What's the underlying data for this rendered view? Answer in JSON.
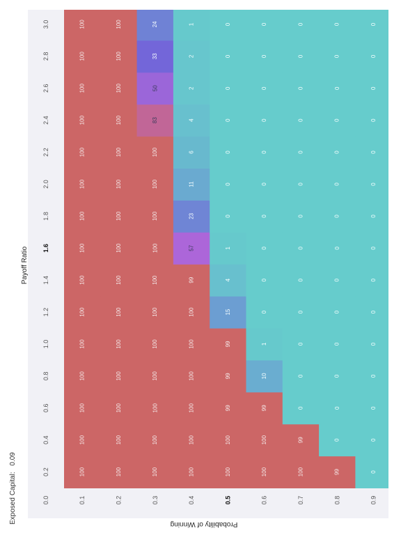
{
  "header": {
    "exposed_label": "Exposed Capital:",
    "exposed_value": "0.09"
  },
  "colors": {
    "low": "#66cccc",
    "mid": "#7366d9",
    "mid2": "#b366d9",
    "high": "#cc6666"
  },
  "chart_data": {
    "type": "heatmap",
    "xlabel": "Payoff Ratio",
    "ylabel": "Probability of Winning",
    "payoff_ticks": [
      "0.2",
      "0.4",
      "0.6",
      "0.8",
      "1.0",
      "1.2",
      "1.4",
      "1.6",
      "1.8",
      "2.0",
      "2.2",
      "2.4",
      "2.6",
      "2.8",
      "3.0"
    ],
    "probability_ticks": [
      "0.0",
      "0.1",
      "0.2",
      "0.3",
      "0.4",
      "0.5",
      "0.6",
      "0.7",
      "0.8",
      "0.9"
    ],
    "highlight_payoff": "1.6",
    "highlight_probability": "0.5",
    "rows": [
      {
        "probability": "0.1",
        "values": [
          100,
          100,
          100,
          100,
          100,
          100,
          100,
          100,
          100,
          100,
          100,
          100,
          100,
          100,
          100
        ]
      },
      {
        "probability": "0.2",
        "values": [
          100,
          100,
          100,
          100,
          100,
          100,
          100,
          100,
          100,
          100,
          100,
          100,
          100,
          100,
          100
        ]
      },
      {
        "probability": "0.3",
        "values": [
          100,
          100,
          100,
          100,
          100,
          100,
          100,
          100,
          100,
          100,
          100,
          83,
          50,
          33,
          24
        ]
      },
      {
        "probability": "0.4",
        "values": [
          100,
          100,
          100,
          100,
          100,
          100,
          99,
          57,
          23,
          11,
          6,
          4,
          2,
          2,
          1
        ]
      },
      {
        "probability": "0.5",
        "values": [
          100,
          100,
          99,
          99,
          99,
          15,
          4,
          1,
          0,
          0,
          0,
          0,
          0,
          0,
          0
        ]
      },
      {
        "probability": "0.6",
        "values": [
          100,
          100,
          99,
          10,
          1,
          0,
          0,
          0,
          0,
          0,
          0,
          0,
          0,
          0,
          0
        ]
      },
      {
        "probability": "0.7",
        "values": [
          100,
          99,
          0,
          0,
          0,
          0,
          0,
          0,
          0,
          0,
          0,
          0,
          0,
          0,
          0
        ]
      },
      {
        "probability": "0.8",
        "values": [
          99,
          0,
          0,
          0,
          0,
          0,
          0,
          0,
          0,
          0,
          0,
          0,
          0,
          0,
          0
        ]
      },
      {
        "probability": "0.9",
        "values": [
          0,
          0,
          0,
          0,
          0,
          0,
          0,
          0,
          0,
          0,
          0,
          0,
          0,
          0,
          0
        ]
      }
    ]
  }
}
